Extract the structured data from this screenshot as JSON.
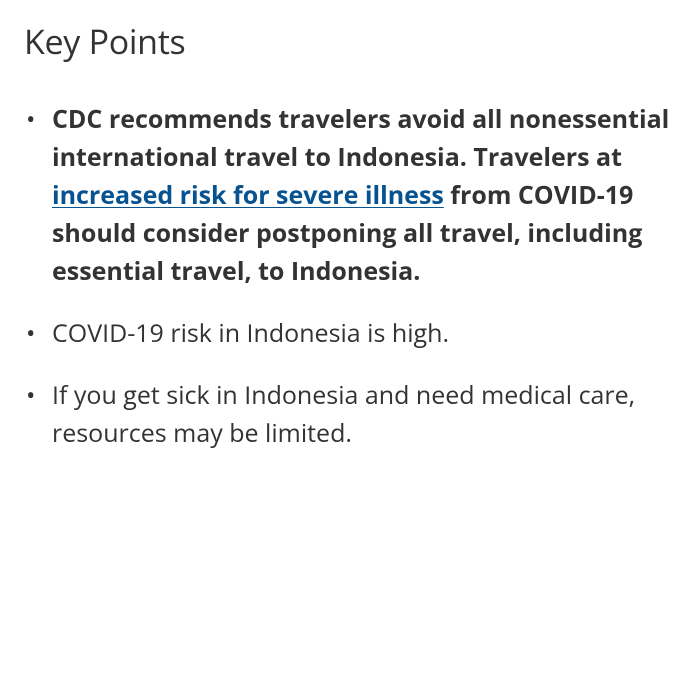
{
  "heading": "Key Points",
  "items": [
    {
      "before_link": "CDC recommends travelers avoid all nonessential international travel to Indonesia. Travelers at ",
      "link_text": "increased risk for severe illness",
      "after_link": " from COVID-19 should consider postponing all travel, including essential travel, to Indonesia.",
      "bold": true,
      "has_link": true
    },
    {
      "text": "COVID-19 risk in Indonesia is high.",
      "bold": false,
      "has_link": false
    },
    {
      "text": "If you get sick in Indonesia and need medical care, resources may be limited.",
      "bold": false,
      "has_link": false
    }
  ],
  "link_color": "#075290",
  "text_color": "#333333",
  "background_color": "#ffffff",
  "heading_fontsize": 34,
  "body_fontsize": 25,
  "line_height": 1.52
}
